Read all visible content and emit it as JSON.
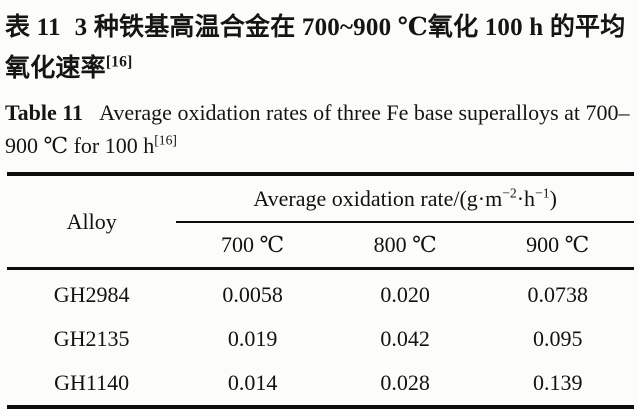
{
  "colors": {
    "background": "#fcfcfb",
    "text": "#161514",
    "rule": "#0d0d0d"
  },
  "caption_zh": {
    "label": "表 11",
    "text": "3 种铁基高温合金在 700~900 ℃氧化 100 h 的平均氧化速率",
    "ref": "[16]"
  },
  "caption_en": {
    "label": "Table 11",
    "text": "Average oxidation rates of three Fe base superalloys at 700–900 ℃ for 100 h",
    "ref": "[16]"
  },
  "table": {
    "alloy_header": "Alloy",
    "unit_header": {
      "p1": "Average oxidation rate/(g·m",
      "s1": "−2",
      "p2": "·h",
      "s2": "−1",
      "p3": ")"
    },
    "temp_headers": [
      "700 ℃",
      "800 ℃",
      "900 ℃"
    ],
    "rows": [
      {
        "alloy": "GH2984",
        "values": [
          "0.0058",
          "0.020",
          "0.0738"
        ]
      },
      {
        "alloy": "GH2135",
        "values": [
          "0.019",
          "0.042",
          "0.095"
        ]
      },
      {
        "alloy": "GH1140",
        "values": [
          "0.014",
          "0.028",
          "0.139"
        ]
      }
    ]
  },
  "chart_data": {
    "type": "table",
    "title": "Average oxidation rates of three Fe base superalloys at 700–900 ℃ for 100 h",
    "unit": "g·m−2·h−1",
    "columns": [
      "Alloy",
      "700 ℃",
      "800 ℃",
      "900 ℃"
    ],
    "rows": [
      [
        "GH2984",
        0.0058,
        0.02,
        0.0738
      ],
      [
        "GH2135",
        0.019,
        0.042,
        0.095
      ],
      [
        "GH1140",
        0.014,
        0.028,
        0.139
      ]
    ]
  }
}
